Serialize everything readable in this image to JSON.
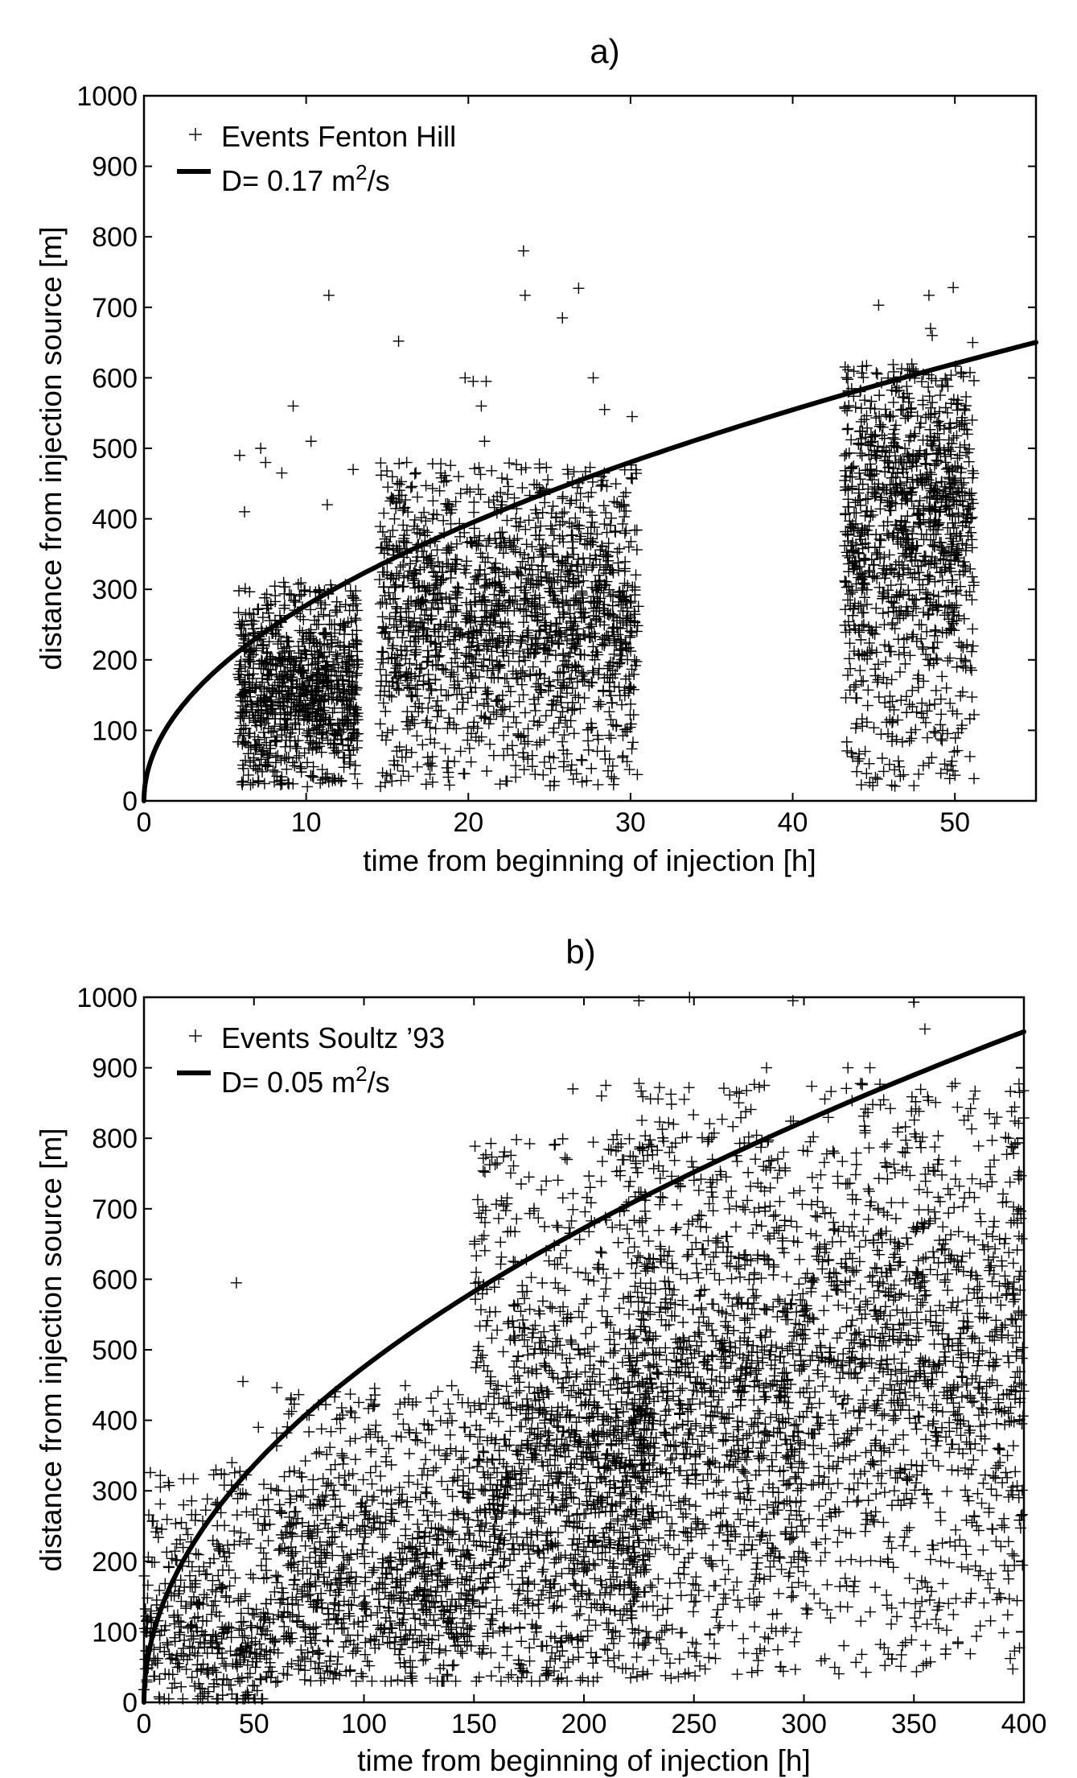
{
  "chart_data": [
    {
      "type": "scatter",
      "title": "a)",
      "xlabel": "time from beginning of injection [h]",
      "ylabel": "distance from injection source [m]",
      "xlim": [
        0,
        55
      ],
      "ylim": [
        0,
        1000
      ],
      "xticks": [
        "0",
        "10",
        "20",
        "30",
        "40",
        "50"
      ],
      "yticks": [
        "0",
        "100",
        "200",
        "300",
        "400",
        "500",
        "600",
        "700",
        "800",
        "900",
        "1000"
      ],
      "grid": false,
      "legend_placement": "top-left",
      "legend": {
        "events_label": "Events Fenton Hill",
        "curve_prefix": "D= 0.17 m",
        "curve_exponent": "2",
        "curve_suffix": "/s"
      },
      "series": [
        {
          "name": "Events Fenton Hill",
          "marker": "+",
          "clusters": [
            {
              "x_range": [
                5.8,
                13.2
              ],
              "y_range": [
                20,
                310
              ],
              "density_center": [
                9,
                150
              ],
              "count": 900
            },
            {
              "x_range": [
                14.5,
                30.5
              ],
              "y_range": [
                20,
                480
              ],
              "density_center": [
                22,
                260
              ],
              "count": 1600
            },
            {
              "x_range": [
                43.2,
                51.2
              ],
              "y_range": [
                20,
                620
              ],
              "density_center": [
                47,
                400
              ],
              "count": 1100
            }
          ],
          "outliers": [
            [
              5.9,
              490
            ],
            [
              6.2,
              410
            ],
            [
              7.2,
              500
            ],
            [
              7.5,
              480
            ],
            [
              8.5,
              465
            ],
            [
              9.2,
              560
            ],
            [
              10.3,
              510
            ],
            [
              11.4,
              717
            ],
            [
              11.3,
              420
            ],
            [
              12.9,
              470
            ],
            [
              15.7,
              652
            ],
            [
              19.8,
              600
            ],
            [
              20.3,
              595
            ],
            [
              21.1,
              595
            ],
            [
              20.8,
              560
            ],
            [
              21.0,
              510
            ],
            [
              23.4,
              780
            ],
            [
              23.5,
              717
            ],
            [
              25.8,
              685
            ],
            [
              26.8,
              727
            ],
            [
              27.7,
              600
            ],
            [
              28.4,
              555
            ],
            [
              30.1,
              545
            ],
            [
              16.2,
              480
            ],
            [
              18.3,
              465
            ],
            [
              19.4,
              460
            ],
            [
              24.6,
              440
            ],
            [
              45.3,
              703
            ],
            [
              48.4,
              717
            ],
            [
              48.5,
              670
            ],
            [
              49.9,
              728
            ],
            [
              50.4,
              608
            ],
            [
              51.1,
              650
            ],
            [
              48.6,
              660
            ]
          ]
        },
        {
          "name": "D= 0.17 m2/s",
          "type": "line",
          "function": "sqrt(4*pi*D*t)",
          "D_m2_per_s": 0.17,
          "x": [
            0,
            5,
            10,
            15,
            20,
            25,
            30,
            35,
            40,
            45,
            50,
            55
          ],
          "y": [
            0,
            196,
            277,
            339,
            392,
            438,
            479,
            518,
            554,
            587,
            619,
            649
          ]
        }
      ]
    },
    {
      "type": "scatter",
      "title": "b)",
      "xlabel": "time from beginning of injection [h]",
      "ylabel": "distance from injection source [m]",
      "xlim": [
        0,
        400
      ],
      "ylim": [
        0,
        1000
      ],
      "xticks": [
        "0",
        "50",
        "100",
        "150",
        "200",
        "250",
        "300",
        "350",
        "400"
      ],
      "yticks": [
        "0",
        "100",
        "200",
        "300",
        "400",
        "500",
        "600",
        "700",
        "800",
        "900",
        "1000"
      ],
      "grid": false,
      "legend_placement": "top-left",
      "legend": {
        "events_label": "Events Soultz ’93",
        "curve_prefix": "D= 0.05 m",
        "curve_exponent": "2",
        "curve_suffix": "/s"
      },
      "series": [
        {
          "name": "Events Soultz ’93",
          "marker": "+",
          "clusters": [
            {
              "x_range": [
                0,
                60
              ],
              "y_range": [
                5,
                330
              ],
              "density_center": [
                35,
                90
              ],
              "count": 450
            },
            {
              "x_range": [
                60,
                150
              ],
              "y_range": [
                30,
                450
              ],
              "density_center": [
                110,
                170
              ],
              "count": 900
            },
            {
              "x_range": [
                150,
                230
              ],
              "y_range": [
                30,
                800
              ],
              "density_center": [
                200,
                300
              ],
              "count": 1300
            },
            {
              "x_range": [
                220,
                300
              ],
              "y_range": [
                30,
                880
              ],
              "density_center": [
                250,
                430
              ],
              "count": 1200
            },
            {
              "x_range": [
                300,
                400
              ],
              "y_range": [
                40,
                880
              ],
              "density_center": [
                350,
                480
              ],
              "count": 1200
            }
          ],
          "outliers": [
            [
              17,
              255
            ],
            [
              18,
              280
            ],
            [
              42,
              595
            ],
            [
              45,
              455
            ],
            [
              52,
              390
            ],
            [
              40,
              340
            ],
            [
              155,
              752
            ],
            [
              165,
              707
            ],
            [
              175,
              745
            ],
            [
              195,
              870
            ],
            [
              208,
              860
            ],
            [
              210,
              875
            ],
            [
              215,
              805
            ],
            [
              225,
              995
            ],
            [
              248,
              1000
            ],
            [
              295,
              995
            ],
            [
              350,
              993
            ],
            [
              355,
              955
            ],
            [
              283,
              900
            ],
            [
              282,
              875
            ],
            [
              320,
              900
            ],
            [
              330,
              900
            ],
            [
              398,
              865
            ],
            [
              392,
              710
            ],
            [
              395,
              580
            ],
            [
              398,
              525
            ],
            [
              396,
              430
            ],
            [
              393,
              228
            ]
          ]
        },
        {
          "name": "D= 0.05 m2/s",
          "type": "line",
          "function": "sqrt(4*pi*D*t)",
          "D_m2_per_s": 0.05,
          "x": [
            0,
            25,
            50,
            100,
            150,
            200,
            250,
            300,
            350,
            400
          ],
          "y": [
            0,
            238,
            336,
            476,
            583,
            673,
            752,
            824,
            890,
            951
          ]
        }
      ]
    }
  ]
}
